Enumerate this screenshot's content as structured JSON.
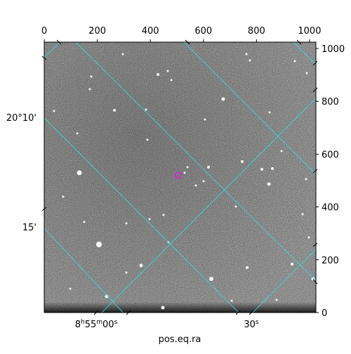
{
  "chart_data": {
    "type": "image",
    "xlabel": "pos.eq.ra",
    "pixel_axis": {
      "x_ticks": [
        "0",
        "200",
        "400",
        "600",
        "800",
        "1000"
      ],
      "y_ticks": [
        "0",
        "200",
        "400",
        "600",
        "800",
        "1000"
      ],
      "xlim": [
        0,
        1024
      ],
      "ylim": [
        0,
        1024
      ]
    },
    "world_axis": {
      "ra_ticks": [
        {
          "label": "8h55m00s",
          "hours": "8",
          "minutes": "55",
          "seconds": "00"
        },
        {
          "label": "30s",
          "seconds": "30"
        }
      ],
      "dec_ticks": [
        {
          "label": "20°10'"
        },
        {
          "label": "15'"
        }
      ]
    },
    "target_marker": {
      "x": 505,
      "y": 520,
      "color": "#e020e0"
    },
    "grid_color": "#3ad6d6",
    "grid": true,
    "colormap": "gray"
  }
}
